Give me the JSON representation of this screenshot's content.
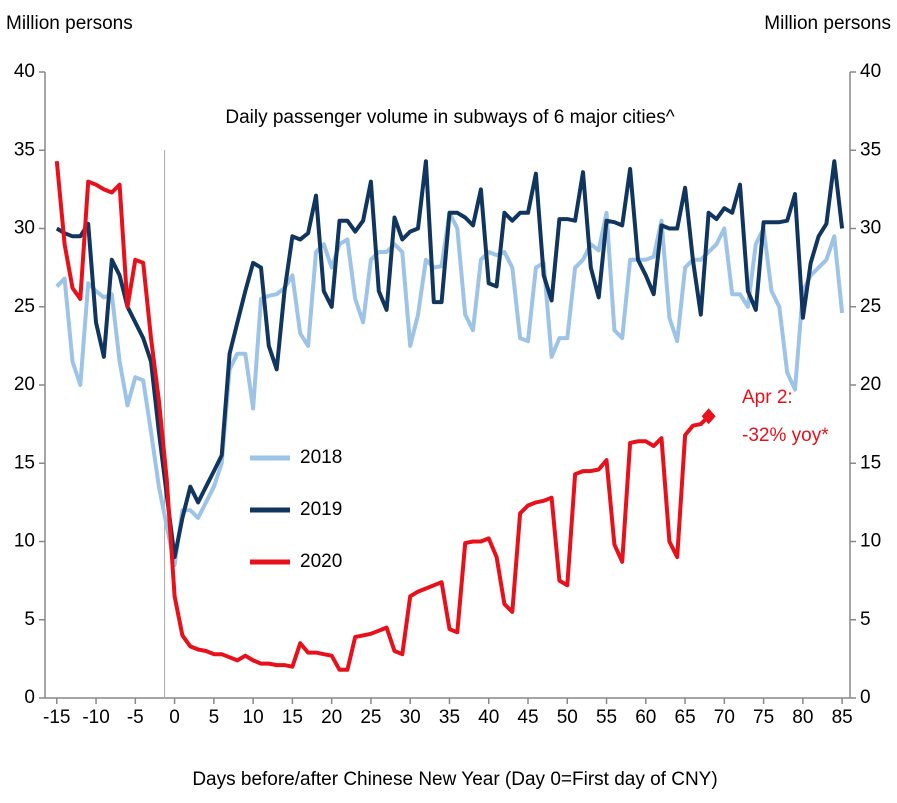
{
  "chart_data": {
    "type": "line",
    "title": "Daily passenger volume in subways of 6 major cities^",
    "y_label": "Million persons",
    "y2_label": "Million persons",
    "x_label": "Days before/after Chinese New Year (Day 0=First day of CNY)",
    "annotation": [
      "Apr 2:",
      "-32% yoy*"
    ],
    "legend": "center-left",
    "xlim": [
      -16.5,
      86
    ],
    "xticks": [
      -15,
      -10,
      -5,
      0,
      5,
      10,
      15,
      20,
      25,
      30,
      35,
      40,
      45,
      50,
      55,
      60,
      65,
      70,
      75,
      80,
      85
    ],
    "ylim": [
      0,
      40
    ],
    "yticks": [
      0,
      5,
      10,
      15,
      20,
      25,
      30,
      35,
      40
    ],
    "y2lim": [
      0,
      40
    ],
    "y2ticks": [
      0,
      5,
      10,
      15,
      20,
      25,
      30,
      35,
      40
    ],
    "series": [
      {
        "name": "2018",
        "color": "#9dc3e6",
        "x_start": -15,
        "values": [
          26.3,
          26.8,
          21.5,
          20,
          26.5,
          26,
          25.6,
          25.8,
          21.5,
          18.7,
          20.5,
          20.3,
          17,
          13.5,
          11,
          8.5,
          12,
          12,
          11.5,
          12.5,
          13.5,
          15,
          21,
          22,
          22,
          18.5,
          25.5,
          25.7,
          25.8,
          26.2,
          27,
          23.3,
          22.5,
          28.5,
          29,
          27.5,
          29,
          29.3,
          25.5,
          24,
          28,
          28.5,
          28.5,
          29,
          28.5,
          22.5,
          24.5,
          28,
          27.5,
          27.6,
          31,
          30,
          24.5,
          23.5,
          28,
          28.5,
          28.3,
          28.5,
          27.5,
          23,
          22.8,
          27.5,
          27.8,
          21.8,
          23,
          23,
          27.5,
          28,
          29,
          28.6,
          31,
          23.5,
          23,
          28,
          28,
          28,
          28.2,
          30.5,
          24.3,
          22.8,
          27.5,
          28,
          28,
          28.5,
          29,
          30,
          25.8,
          25.8,
          25,
          29,
          30,
          26,
          25,
          20.8,
          19.7,
          26,
          27,
          27.5,
          28,
          29.5,
          24.6
        ]
      },
      {
        "name": "2019",
        "color": "#10355e",
        "x_start": -15,
        "values": [
          30,
          29.7,
          29.5,
          29.5,
          30.3,
          24,
          21.8,
          28,
          27,
          25,
          24,
          23,
          21.5,
          17,
          13,
          9,
          11.5,
          13.5,
          12.5,
          13.5,
          14.5,
          15.5,
          22,
          24,
          26,
          27.8,
          27.5,
          22.5,
          21,
          26,
          29.5,
          29.3,
          29.7,
          32.1,
          26,
          25,
          30.5,
          30.5,
          29.8,
          30.5,
          33,
          26,
          24.8,
          30.7,
          29.3,
          29.8,
          30,
          34.3,
          25.3,
          25.3,
          31,
          31,
          30.7,
          30.2,
          32.5,
          26.5,
          26.3,
          31,
          30.5,
          31,
          31,
          33.5,
          27,
          25.4,
          30.6,
          30.6,
          30.5,
          33.6,
          27.5,
          25.6,
          30.5,
          30.4,
          30.2,
          33.8,
          28,
          27,
          25.8,
          30.2,
          30,
          30,
          32.6,
          28,
          24.5,
          31,
          30.6,
          31.3,
          31,
          32.8,
          26,
          24.8,
          30.4,
          30.4,
          30.4,
          30.5,
          32.2,
          24.3,
          27.8,
          29.5,
          30.3,
          34.3,
          30
        ]
      },
      {
        "name": "2020",
        "color": "#e8101a",
        "x_start": -15,
        "values": [
          34.3,
          29,
          26.2,
          25.5,
          33,
          32.8,
          32.5,
          32.3,
          32.8,
          25,
          28,
          27.8,
          23,
          19,
          14,
          6.5,
          4,
          3.3,
          3.1,
          3,
          2.8,
          2.8,
          2.6,
          2.4,
          2.7,
          2.4,
          2.2,
          2.2,
          2.1,
          2.1,
          2,
          3.5,
          2.9,
          2.9,
          2.8,
          2.7,
          1.8,
          1.8,
          3.9,
          4,
          4.1,
          4.3,
          4.5,
          3,
          2.8,
          6.5,
          6.8,
          7,
          7.2,
          7.4,
          4.4,
          4.2,
          9.9,
          10,
          10,
          10.2,
          9,
          6,
          5.5,
          11.8,
          12.3,
          12.5,
          12.6,
          12.8,
          7.5,
          7.2,
          14.3,
          14.5,
          14.5,
          14.6,
          15.2,
          9.8,
          8.7,
          16.3,
          16.4,
          16.4,
          16.1,
          16.6,
          10,
          9,
          16.8,
          17.4,
          17.5,
          18
        ]
      }
    ]
  }
}
